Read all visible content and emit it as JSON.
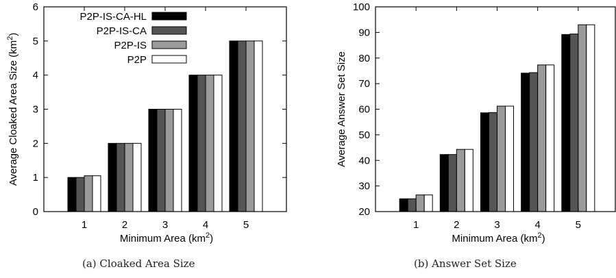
{
  "chart_data": [
    {
      "type": "bar",
      "categories": [
        "1",
        "2",
        "3",
        "4",
        "5"
      ],
      "xlabel": "Minimum Area (km",
      "xlabel_sup": "2",
      "xlabel_end": ")",
      "ylabel": "Average Cloaked Area Size  (km",
      "ylabel_sup": "2",
      "ylabel_end": ")",
      "ylim": [
        0,
        6
      ],
      "yticks": [
        "0",
        "1",
        "2",
        "3",
        "4",
        "5",
        "6"
      ],
      "legend_position": "top-left",
      "series": [
        {
          "name": "P2P-IS-CA-HL",
          "color": "#000000",
          "values": [
            1.0,
            2.0,
            3.0,
            4.0,
            5.0
          ]
        },
        {
          "name": "P2P-IS-CA",
          "color": "#555555",
          "values": [
            1.0,
            2.0,
            3.0,
            4.0,
            5.0
          ]
        },
        {
          "name": "P2P-IS",
          "color": "#9a9a9a",
          "values": [
            1.05,
            2.0,
            3.0,
            4.0,
            5.0
          ]
        },
        {
          "name": "P2P",
          "color": "#ffffff",
          "values": [
            1.05,
            2.0,
            3.0,
            4.0,
            5.0
          ]
        }
      ],
      "caption": "(a) Cloaked Area Size"
    },
    {
      "type": "bar",
      "categories": [
        "1",
        "2",
        "3",
        "4",
        "5"
      ],
      "xlabel": "Minimum Area (km",
      "xlabel_sup": "2",
      "xlabel_end": ")",
      "ylabel": "Average Answer Set Size",
      "ylim": [
        20,
        100
      ],
      "yticks": [
        "20",
        "30",
        "40",
        "50",
        "60",
        "70",
        "80",
        "90",
        "100"
      ],
      "series": [
        {
          "name": "P2P-IS-CA-HL",
          "color": "#000000",
          "values": [
            25.0,
            42.3,
            58.6,
            74.1,
            89.2
          ]
        },
        {
          "name": "P2P-IS-CA",
          "color": "#555555",
          "values": [
            25.0,
            42.3,
            58.7,
            74.3,
            89.4
          ]
        },
        {
          "name": "P2P-IS",
          "color": "#9a9a9a",
          "values": [
            26.5,
            44.3,
            61.2,
            77.3,
            93.0
          ]
        },
        {
          "name": "P2P",
          "color": "#ffffff",
          "values": [
            26.5,
            44.3,
            61.2,
            77.3,
            93.0
          ]
        }
      ],
      "caption": "(b) Answer Set Size"
    }
  ]
}
